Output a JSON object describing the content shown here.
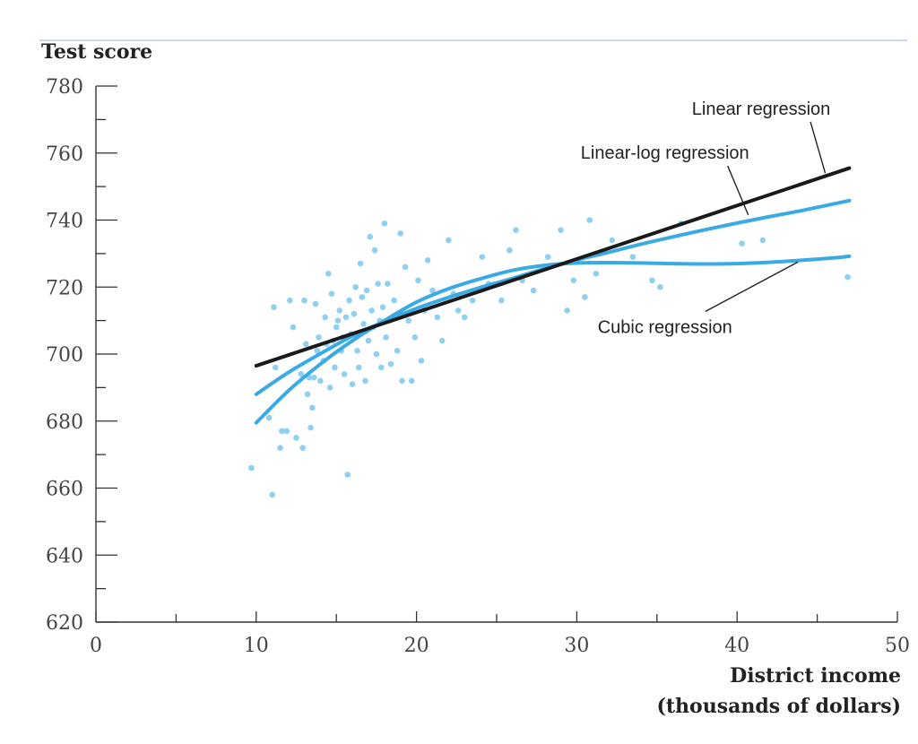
{
  "chart_data": {
    "type": "scatter",
    "title": "",
    "ylabel": "Test score",
    "xlabel_line1": "District income",
    "xlabel_line2": "(thousands of dollars)",
    "xlim": [
      0,
      50
    ],
    "ylim": [
      620,
      780
    ],
    "x_ticks": [
      0,
      10,
      20,
      30,
      40,
      50
    ],
    "y_ticks": [
      620,
      640,
      660,
      680,
      700,
      720,
      740,
      760,
      780
    ],
    "x_minor_step": 5,
    "y_minor_step": 10,
    "grid": false,
    "colors": {
      "points": "#8fd0f0",
      "linear": "#1a1a1a",
      "linear_log": "#3aaae5",
      "cubic": "#3aaae5",
      "axis": "#333333",
      "top_rule": "#b5c8ee"
    },
    "scatter": [
      [
        9.7,
        666
      ],
      [
        10.8,
        681
      ],
      [
        11.0,
        658
      ],
      [
        11.1,
        714
      ],
      [
        11.2,
        696
      ],
      [
        11.5,
        672
      ],
      [
        11.6,
        677
      ],
      [
        11.9,
        677
      ],
      [
        12.1,
        716
      ],
      [
        12.3,
        708
      ],
      [
        12.5,
        675
      ],
      [
        12.8,
        694
      ],
      [
        12.9,
        672
      ],
      [
        13.0,
        716
      ],
      [
        13.1,
        703
      ],
      [
        13.2,
        688
      ],
      [
        13.3,
        693
      ],
      [
        13.4,
        678
      ],
      [
        13.5,
        684
      ],
      [
        13.6,
        693
      ],
      [
        13.7,
        715
      ],
      [
        13.8,
        701
      ],
      [
        13.9,
        705
      ],
      [
        14.0,
        692
      ],
      [
        14.2,
        698
      ],
      [
        14.3,
        711
      ],
      [
        14.4,
        703
      ],
      [
        14.5,
        724
      ],
      [
        14.6,
        690
      ],
      [
        14.7,
        718
      ],
      [
        14.8,
        704
      ],
      [
        14.9,
        696
      ],
      [
        15.0,
        708
      ],
      [
        15.1,
        710
      ],
      [
        15.2,
        713
      ],
      [
        15.3,
        701
      ],
      [
        15.4,
        705
      ],
      [
        15.5,
        694
      ],
      [
        15.6,
        711
      ],
      [
        15.7,
        664
      ],
      [
        15.8,
        716
      ],
      [
        15.9,
        706
      ],
      [
        16.0,
        691
      ],
      [
        16.1,
        712
      ],
      [
        16.2,
        720
      ],
      [
        16.3,
        701
      ],
      [
        16.4,
        696
      ],
      [
        16.5,
        727
      ],
      [
        16.6,
        717
      ],
      [
        16.7,
        709
      ],
      [
        16.8,
        692
      ],
      [
        16.9,
        719
      ],
      [
        17.0,
        704
      ],
      [
        17.1,
        735
      ],
      [
        17.2,
        713
      ],
      [
        17.3,
        708
      ],
      [
        17.4,
        731
      ],
      [
        17.5,
        700
      ],
      [
        17.6,
        721
      ],
      [
        17.7,
        710
      ],
      [
        17.8,
        696
      ],
      [
        17.9,
        714
      ],
      [
        18.0,
        739
      ],
      [
        18.1,
        705
      ],
      [
        18.2,
        721
      ],
      [
        18.3,
        710
      ],
      [
        18.4,
        697
      ],
      [
        18.6,
        716
      ],
      [
        18.8,
        701
      ],
      [
        19.0,
        736
      ],
      [
        19.1,
        692
      ],
      [
        19.3,
        726
      ],
      [
        19.5,
        710
      ],
      [
        19.7,
        692
      ],
      [
        19.9,
        705
      ],
      [
        20.1,
        722
      ],
      [
        20.3,
        698
      ],
      [
        20.5,
        713
      ],
      [
        20.7,
        728
      ],
      [
        21.0,
        719
      ],
      [
        21.3,
        711
      ],
      [
        21.6,
        704
      ],
      [
        22.0,
        734
      ],
      [
        22.3,
        718
      ],
      [
        22.6,
        713
      ],
      [
        23.0,
        711
      ],
      [
        23.5,
        716
      ],
      [
        24.1,
        729
      ],
      [
        24.5,
        721
      ],
      [
        25.3,
        716
      ],
      [
        25.8,
        731
      ],
      [
        26.2,
        737
      ],
      [
        26.6,
        722
      ],
      [
        27.3,
        719
      ],
      [
        28.2,
        729
      ],
      [
        29.0,
        737
      ],
      [
        29.4,
        713
      ],
      [
        29.8,
        722
      ],
      [
        30.5,
        717
      ],
      [
        30.8,
        740
      ],
      [
        31.2,
        724
      ],
      [
        32.2,
        734
      ],
      [
        33.5,
        729
      ],
      [
        34.7,
        722
      ],
      [
        35.2,
        720
      ],
      [
        36.5,
        739
      ],
      [
        40.3,
        733
      ],
      [
        41.6,
        734
      ],
      [
        46.9,
        723
      ]
    ],
    "series": [
      {
        "name": "Linear regression",
        "color": "#1a1a1a",
        "x": [
          10,
          47
        ],
        "y": [
          696.5,
          755.5
        ]
      },
      {
        "name": "Linear-log regression",
        "color": "#3aaae5",
        "x": [
          10,
          12,
          14,
          16,
          18,
          20,
          22,
          24,
          26,
          28,
          30,
          32,
          34,
          36,
          38,
          40,
          42,
          44,
          46,
          47
        ],
        "y": [
          688,
          694.5,
          700.1,
          705.4,
          709.7,
          713.6,
          716.9,
          719.9,
          722.6,
          725.5,
          728.1,
          730.4,
          732.8,
          735.0,
          737.1,
          739.1,
          741.0,
          742.8,
          744.8,
          745.8
        ]
      },
      {
        "name": "Cubic regression",
        "color": "#3aaae5",
        "x": [
          10,
          12,
          14,
          16,
          18,
          20,
          22,
          24,
          26,
          28,
          30,
          32,
          34,
          36,
          38,
          40,
          42,
          44,
          46,
          47
        ],
        "y": [
          679.5,
          689,
          697,
          704,
          710,
          715.5,
          719.5,
          722.5,
          725,
          726.5,
          727.2,
          727.3,
          727.2,
          727.0,
          726.9,
          727.0,
          727.4,
          728.0,
          728.7,
          729.2
        ]
      }
    ],
    "annotations": [
      {
        "text": "Linear regression",
        "label_at": [
          41.5,
          771.5
        ],
        "arrow_to": [
          45.5,
          754
        ]
      },
      {
        "text": "Linear-log regression",
        "label_at": [
          35.5,
          758.3
        ],
        "arrow_to": [
          40.7,
          741.5
        ]
      },
      {
        "text": "Cubic regression",
        "label_at": [
          35.5,
          706.3
        ],
        "arrow_to": [
          43.8,
          727.5
        ]
      }
    ]
  }
}
